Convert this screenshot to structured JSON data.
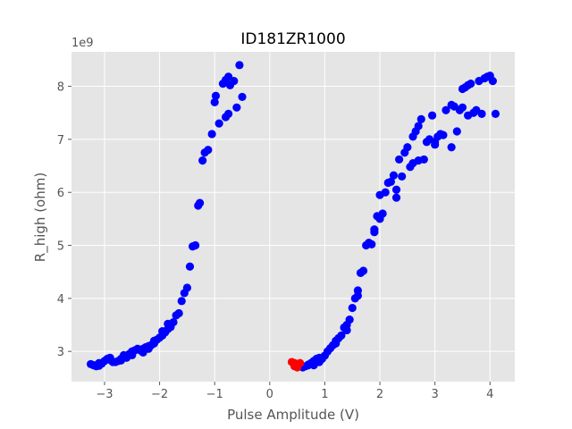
{
  "chart_data": {
    "type": "scatter",
    "title": "ID181ZR1000",
    "xlabel": "Pulse Amplitude (V)",
    "ylabel": "R_high (ohm)",
    "y_offset_text": "1e9",
    "xlim": [
      -3.6,
      4.45
    ],
    "ylim": [
      2.43,
      8.65
    ],
    "x_ticks": [
      -3,
      -2,
      -1,
      0,
      1,
      2,
      3,
      4
    ],
    "x_tick_labels": [
      "−3",
      "−2",
      "−1",
      "0",
      "1",
      "2",
      "3",
      "4"
    ],
    "y_ticks": [
      3,
      4,
      5,
      6,
      7,
      8
    ],
    "y_tick_labels": [
      "3",
      "4",
      "5",
      "6",
      "7",
      "8"
    ],
    "grid": true,
    "colors": {
      "plot_background": "#e5e5e5",
      "grid": "#ffffff",
      "series_blue": "#0000ff",
      "series_red": "#ff0000"
    },
    "series": [
      {
        "color": "#0000ff",
        "points": [
          [
            -3.25,
            2.76
          ],
          [
            -3.2,
            2.74
          ],
          [
            -3.15,
            2.72
          ],
          [
            -3.1,
            2.73
          ],
          [
            -3.05,
            2.77
          ],
          [
            -3.0,
            2.82
          ],
          [
            -2.95,
            2.86
          ],
          [
            -2.9,
            2.84
          ],
          [
            -2.85,
            2.8
          ],
          [
            -2.8,
            2.8
          ],
          [
            -2.75,
            2.82
          ],
          [
            -2.7,
            2.86
          ],
          [
            -2.65,
            2.93
          ],
          [
            -2.6,
            2.9
          ],
          [
            -2.55,
            2.95
          ],
          [
            -2.5,
            3.0
          ],
          [
            -2.45,
            3.02
          ],
          [
            -2.4,
            3.05
          ],
          [
            -2.35,
            3.02
          ],
          [
            -2.3,
            3.05
          ],
          [
            -2.25,
            3.08
          ],
          [
            -2.2,
            3.1
          ],
          [
            -2.15,
            3.12
          ],
          [
            -2.1,
            3.15
          ],
          [
            -2.05,
            3.22
          ],
          [
            -2.0,
            3.26
          ],
          [
            -1.95,
            3.3
          ],
          [
            -1.9,
            3.36
          ],
          [
            -1.85,
            3.42
          ],
          [
            -1.8,
            3.46
          ],
          [
            -1.75,
            3.55
          ],
          [
            -1.7,
            3.68
          ],
          [
            -1.65,
            3.72
          ],
          [
            -1.6,
            3.95
          ],
          [
            -1.55,
            4.1
          ],
          [
            -1.5,
            4.2
          ],
          [
            -1.45,
            4.6
          ],
          [
            -1.4,
            4.98
          ],
          [
            -1.35,
            5.0
          ],
          [
            -1.3,
            5.75
          ],
          [
            -1.27,
            5.8
          ],
          [
            -1.22,
            6.6
          ],
          [
            -1.18,
            6.75
          ],
          [
            -1.12,
            6.8
          ],
          [
            -1.05,
            7.1
          ],
          [
            -1.0,
            7.7
          ],
          [
            -0.98,
            7.82
          ],
          [
            -0.92,
            7.3
          ],
          [
            -0.85,
            8.05
          ],
          [
            -0.8,
            8.12
          ],
          [
            -0.75,
            8.18
          ],
          [
            -0.72,
            8.02
          ],
          [
            -0.8,
            7.42
          ],
          [
            -0.75,
            7.48
          ],
          [
            -0.65,
            8.1
          ],
          [
            -0.6,
            7.6
          ],
          [
            -0.55,
            8.4
          ],
          [
            -0.5,
            7.8
          ],
          [
            -2.9,
            2.88
          ],
          [
            -2.7,
            2.83
          ],
          [
            -2.5,
            2.93
          ],
          [
            -2.3,
            2.98
          ],
          [
            -2.1,
            3.2
          ],
          [
            -1.95,
            3.38
          ],
          [
            -1.85,
            3.52
          ],
          [
            -2.2,
            3.05
          ],
          [
            -2.6,
            2.88
          ],
          [
            -3.1,
            2.78
          ],
          [
            0.6,
            2.7
          ],
          [
            0.65,
            2.72
          ],
          [
            0.7,
            2.75
          ],
          [
            0.75,
            2.78
          ],
          [
            0.8,
            2.82
          ],
          [
            0.85,
            2.86
          ],
          [
            0.9,
            2.88
          ],
          [
            0.95,
            2.86
          ],
          [
            1.0,
            2.92
          ],
          [
            1.05,
            3.0
          ],
          [
            1.1,
            3.06
          ],
          [
            1.15,
            3.12
          ],
          [
            1.2,
            3.2
          ],
          [
            1.25,
            3.25
          ],
          [
            1.3,
            3.3
          ],
          [
            1.35,
            3.45
          ],
          [
            1.4,
            3.5
          ],
          [
            1.45,
            3.6
          ],
          [
            1.5,
            3.82
          ],
          [
            1.55,
            4.0
          ],
          [
            1.6,
            4.15
          ],
          [
            1.65,
            4.48
          ],
          [
            1.7,
            4.52
          ],
          [
            1.75,
            5.0
          ],
          [
            1.8,
            5.05
          ],
          [
            1.85,
            5.02
          ],
          [
            1.9,
            5.25
          ],
          [
            1.95,
            5.55
          ],
          [
            2.0,
            5.5
          ],
          [
            2.05,
            5.6
          ],
          [
            2.1,
            6.0
          ],
          [
            2.15,
            6.18
          ],
          [
            2.2,
            6.2
          ],
          [
            2.25,
            6.32
          ],
          [
            2.3,
            6.05
          ],
          [
            2.35,
            6.62
          ],
          [
            2.4,
            6.3
          ],
          [
            2.45,
            6.75
          ],
          [
            2.5,
            6.85
          ],
          [
            2.55,
            6.48
          ],
          [
            2.6,
            7.05
          ],
          [
            2.65,
            7.15
          ],
          [
            2.7,
            7.25
          ],
          [
            2.75,
            7.38
          ],
          [
            2.8,
            6.62
          ],
          [
            2.85,
            6.95
          ],
          [
            2.9,
            7.0
          ],
          [
            2.95,
            7.45
          ],
          [
            3.0,
            6.9
          ],
          [
            3.05,
            7.05
          ],
          [
            3.1,
            7.1
          ],
          [
            3.15,
            7.08
          ],
          [
            3.2,
            7.55
          ],
          [
            3.3,
            7.65
          ],
          [
            3.35,
            7.62
          ],
          [
            3.4,
            7.15
          ],
          [
            3.45,
            7.55
          ],
          [
            3.5,
            7.95
          ],
          [
            3.55,
            7.98
          ],
          [
            3.6,
            8.02
          ],
          [
            3.65,
            8.05
          ],
          [
            3.7,
            7.5
          ],
          [
            3.75,
            7.55
          ],
          [
            3.8,
            8.1
          ],
          [
            3.85,
            7.48
          ],
          [
            3.9,
            8.15
          ],
          [
            3.95,
            8.18
          ],
          [
            4.0,
            8.2
          ],
          [
            4.05,
            8.1
          ],
          [
            4.1,
            7.48
          ],
          [
            0.7,
            2.74
          ],
          [
            0.8,
            2.74
          ],
          [
            1.2,
            3.15
          ],
          [
            1.4,
            3.4
          ],
          [
            1.9,
            5.3
          ],
          [
            2.3,
            5.9
          ],
          [
            2.6,
            6.55
          ],
          [
            2.7,
            6.6
          ],
          [
            3.0,
            6.95
          ],
          [
            3.3,
            6.85
          ],
          [
            3.5,
            7.6
          ],
          [
            3.6,
            7.45
          ],
          [
            0.9,
            2.8
          ],
          [
            1.6,
            4.05
          ],
          [
            2.0,
            5.95
          ]
        ]
      },
      {
        "color": "#ff0000",
        "points": [
          [
            0.4,
            2.8
          ],
          [
            0.45,
            2.72
          ],
          [
            0.5,
            2.75
          ],
          [
            0.55,
            2.78
          ],
          [
            0.5,
            2.7
          ],
          [
            0.45,
            2.78
          ]
        ]
      }
    ]
  }
}
